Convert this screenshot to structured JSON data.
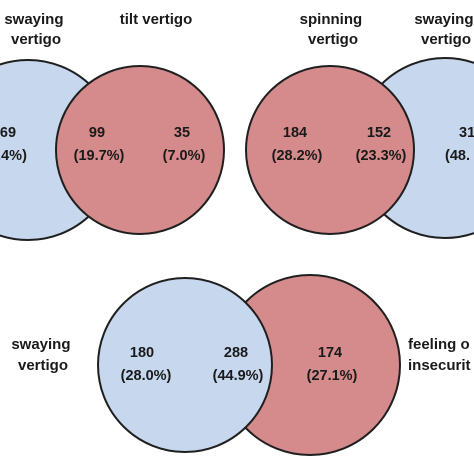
{
  "colors": {
    "blue_fill": "#c6d7ee",
    "blue_stroke": "#1f1f1f",
    "red_fill": "#d58b8b",
    "red_stroke": "#1f1f1f"
  },
  "venn_1": {
    "left_set_label": [
      "swaying",
      "vertigo"
    ],
    "right_set_label": [
      "tilt vertigo"
    ],
    "left_only": {
      "count": "69",
      "percent": ".4%)"
    },
    "overlap": {
      "count": "99",
      "percent": "(19.7%)"
    },
    "right_only": {
      "count": "35",
      "percent": "(7.0%)"
    }
  },
  "venn_2": {
    "left_set_label": [
      "spinning",
      "vertigo"
    ],
    "right_set_label": [
      "swaying",
      "vertigo"
    ],
    "left_only": {
      "count": "184",
      "percent": "(28.2%)"
    },
    "overlap": {
      "count": "152",
      "percent": "(23.3%)"
    },
    "right_only": {
      "count": "31",
      "percent": "(48."
    }
  },
  "venn_3": {
    "left_set_label": [
      "swaying",
      "vertigo"
    ],
    "right_set_label": [
      "feeling o",
      "insecurit"
    ],
    "left_only": {
      "count": "180",
      "percent": "(28.0%)"
    },
    "overlap": {
      "count": "288",
      "percent": "(44.9%)"
    },
    "right_only": {
      "count": "174",
      "percent": "(27.1%)"
    }
  }
}
